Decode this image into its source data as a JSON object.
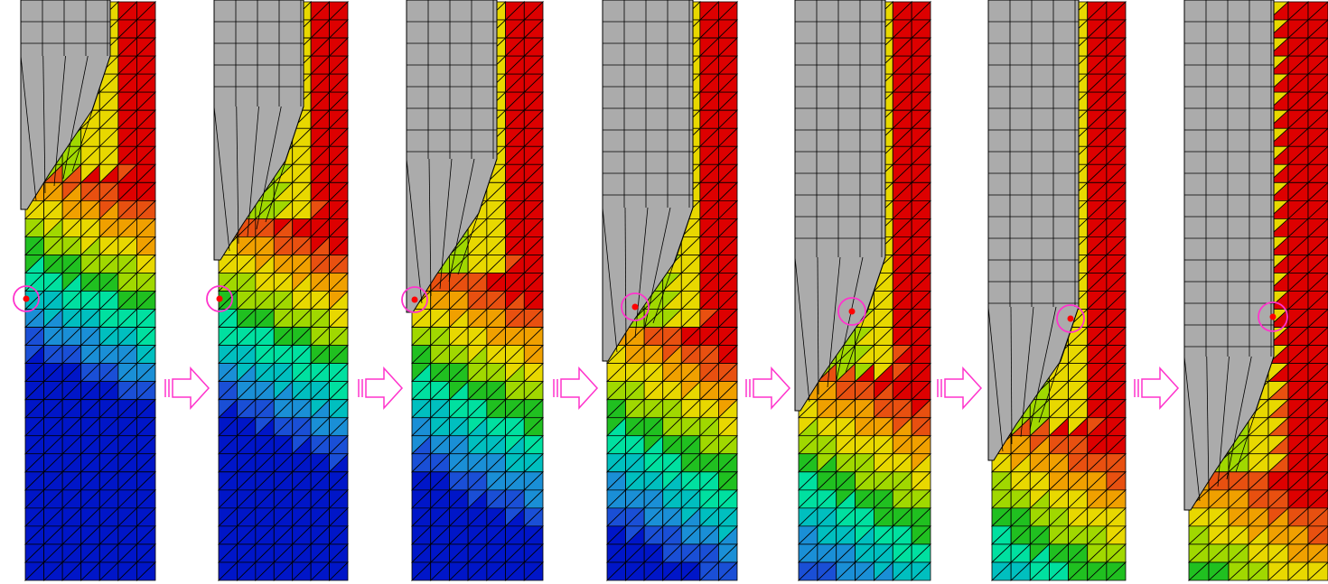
{
  "figure": {
    "frames": [
      {
        "id": "stage-1",
        "step": 1
      },
      {
        "id": "stage-2",
        "step": 2
      },
      {
        "id": "stage-3",
        "step": 3
      },
      {
        "id": "stage-4",
        "step": 4
      },
      {
        "id": "stage-5",
        "step": 5
      },
      {
        "id": "stage-6",
        "step": 6
      },
      {
        "id": "stage-7",
        "step": 7
      }
    ],
    "arrows": 6,
    "colors": {
      "tool_fill": "#ababab",
      "mesh_line": "#000000",
      "tracked_point": "#ff0000",
      "tracked_point_ring": "#ff33cc",
      "arrow": "#ff33cc",
      "contour_scale": [
        "#0016c8",
        "#1a4fd6",
        "#1a8fd6",
        "#00bfbf",
        "#00e0a0",
        "#20c020",
        "#a0d800",
        "#e8d800",
        "#f0a000",
        "#e85010",
        "#dd0000"
      ]
    },
    "icons": [
      "right-arrow-icon",
      "tracked-point-marker-icon"
    ]
  }
}
